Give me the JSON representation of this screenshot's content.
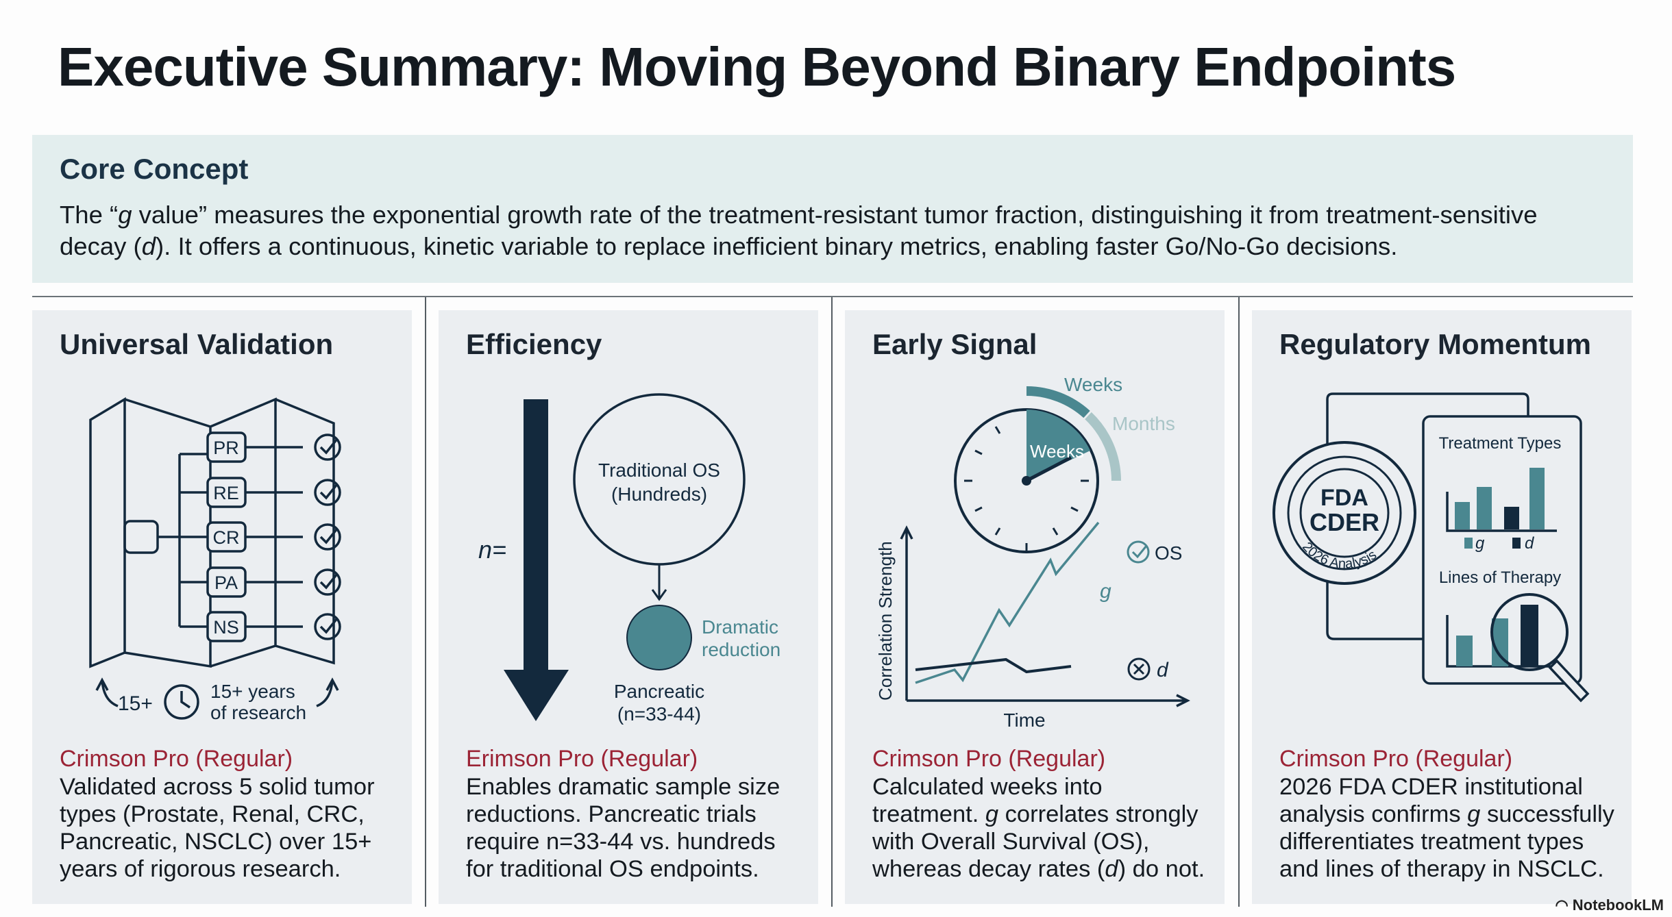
{
  "title": "Executive Summary: Moving Beyond Binary Endpoints",
  "core": {
    "heading": "Core Concept",
    "body_parts": [
      "The “",
      "g",
      " value” measures the exponential growth rate of the treatment-resistant tumor fraction, distinguishing it from treatment-sensitive decay (",
      "d",
      "). It offers a continuous, kinetic variable to replace inefficient binary metrics, enabling faster Go/No-Go decisions."
    ]
  },
  "cards": [
    {
      "title": "Universal Validation",
      "subtitle": "Crimson Pro (Regular)",
      "body": "Validated across 5 solid tumor types (Prostate, Renal, CRC, Pancreatic, NSCLC) over 15+ years of rigorous research.",
      "figure": {
        "tags": [
          "PR",
          "RE",
          "CR",
          "PA",
          "NS"
        ],
        "count": "15+",
        "years_line1": "15+ years",
        "years_line2": "of research"
      }
    },
    {
      "title": "Efficiency",
      "subtitle": "Erimson Pro (Regular)",
      "body": "Enables dramatic sample size reductions. Pancreatic trials require n=33-44 vs. hundreds for traditional OS endpoints.",
      "figure": {
        "n_label": "n=",
        "big_line1": "Traditional OS",
        "big_line2": "(Hundreds)",
        "small_line1": "Dramatic",
        "small_line2": "reduction",
        "pan_line1": "Pancreatic",
        "pan_line2": "(n=33-44)"
      }
    },
    {
      "title": "Early Signal",
      "subtitle": "Crimson Pro (Regular)",
      "body_parts": [
        "Calculated weeks into treatment. ",
        "g",
        " correlates strongly with Overall Survival (OS), whereas decay rates (",
        "d",
        ") do not."
      ],
      "figure": {
        "weeks_outer": "Weeks",
        "months": "Months",
        "weeks_inner": "Weeks",
        "ylabel": "Correlation Strength",
        "xlabel": "Time",
        "os": "OS",
        "g": "g",
        "d": "d"
      }
    },
    {
      "title": "Regulatory Momentum",
      "subtitle": "Crimson Pro (Regular)",
      "body_parts": [
        "2026 FDA CDER institutional analysis confirms ",
        "g",
        " successfully differentiates treatment types and lines of therapy in NSCLC."
      ],
      "figure": {
        "seal_top": "FDA",
        "seal_mid": "CDER",
        "seal_ring": "2026 Analysis",
        "chart1_title": "Treatment Types",
        "legend_g": "g",
        "legend_d": "d",
        "chart2_title": "Lines of Therapy"
      }
    }
  ],
  "brand": "NotebookLM",
  "colors": {
    "navy": "#13293d",
    "teal": "#4a8790",
    "light_teal": "#a9c5c7",
    "red": "#9b2335"
  }
}
